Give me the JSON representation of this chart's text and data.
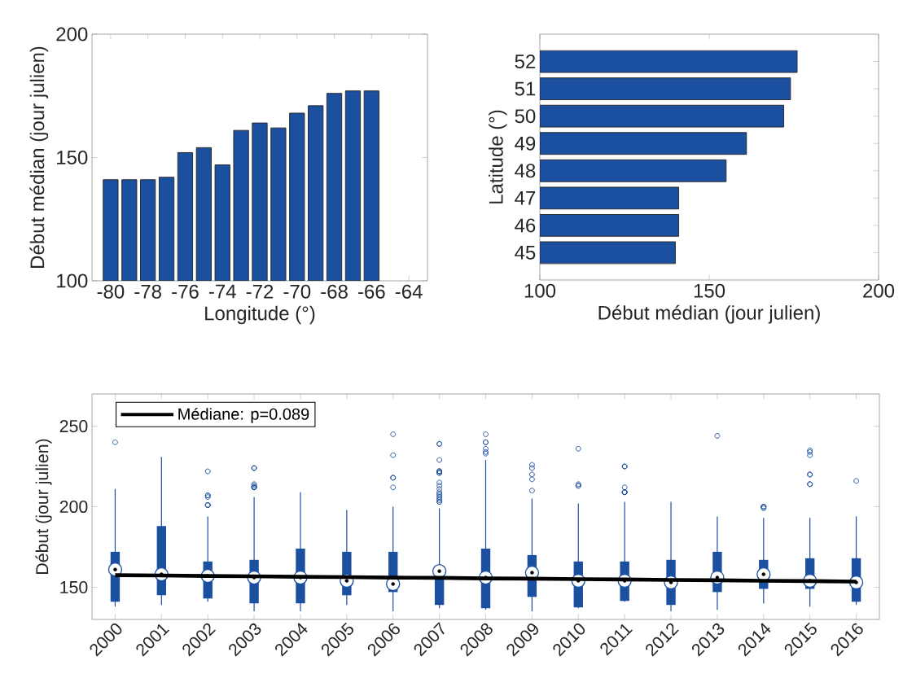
{
  "chart_data": [
    {
      "type": "bar",
      "xlabel": "Longitude (°)",
      "ylabel": "Début médian (jour julien)",
      "color": "#1b4f9f",
      "x": [
        -80,
        -79,
        -78,
        -77,
        -76,
        -75,
        -74,
        -73,
        -72,
        -71,
        -70,
        -69,
        -68,
        -67,
        -66
      ],
      "values": [
        141,
        141,
        141,
        142,
        152,
        154,
        147,
        161,
        164,
        162,
        168,
        171,
        176,
        177,
        177
      ],
      "xlim": [
        -81,
        -63
      ],
      "xticks": [
        -80,
        -78,
        -76,
        -74,
        -72,
        -70,
        -68,
        -66,
        -64
      ],
      "ylim": [
        100,
        200
      ],
      "yticks": [
        100,
        150,
        200
      ]
    },
    {
      "type": "bar",
      "orientation": "horizontal",
      "xlabel": "Début médian (jour julien)",
      "ylabel": "Latitude (°)",
      "color": "#1b4f9f",
      "categories": [
        "52",
        "51",
        "50",
        "49",
        "48",
        "47",
        "46",
        "45"
      ],
      "values": [
        176,
        174,
        172,
        161,
        155,
        141,
        141,
        140
      ],
      "xlim": [
        100,
        200
      ],
      "xticks": [
        100,
        150,
        200
      ]
    },
    {
      "type": "box",
      "ylabel": "Début (jour julien)",
      "legend": "top left",
      "categories": [
        "2000",
        "2001",
        "2002",
        "2003",
        "2004",
        "2005",
        "2006",
        "2007",
        "2008",
        "2009",
        "2010",
        "2011",
        "2012",
        "2013",
        "2014",
        "2015",
        "2016"
      ],
      "ylim": [
        130,
        270
      ],
      "yticks": [
        150,
        200,
        250
      ],
      "series": [
        {
          "type": "box",
          "color": "#1b4f9f",
          "boxes": [
            {
              "low": 138,
              "q1": 141,
              "median": 161,
              "q3": 172,
              "high": 211,
              "outliers": [
                240
              ]
            },
            {
              "low": 139,
              "q1": 145,
              "median": 158,
              "q3": 188,
              "high": 231
            },
            {
              "low": 141,
              "q1": 143,
              "median": 157,
              "q3": 166,
              "high": 194,
              "outliers": [
                222,
                207,
                207,
                206,
                201,
                201,
                201
              ]
            },
            {
              "low": 135,
              "q1": 140,
              "median": 156,
              "q3": 167,
              "high": 206,
              "outliers": [
                224,
                224,
                214,
                213,
                212,
                212,
                212
              ]
            },
            {
              "low": 135,
              "q1": 140,
              "median": 156,
              "q3": 174,
              "high": 209
            },
            {
              "low": 139,
              "q1": 145,
              "median": 154,
              "q3": 172,
              "high": 198
            },
            {
              "low": 135,
              "q1": 147,
              "median": 152,
              "q3": 172,
              "high": 200,
              "outliers": [
                245,
                232,
                218,
                218,
                212
              ]
            },
            {
              "low": 137,
              "q1": 139,
              "median": 160,
              "q3": 163,
              "high": 199,
              "outliers": [
                239,
                239,
                229,
                222,
                222,
                222,
                221,
                221,
                215,
                213,
                211,
                209,
                208,
                207,
                206,
                205,
                204,
                203,
                203
              ]
            },
            {
              "low": 136,
              "q1": 137,
              "median": 156,
              "q3": 174,
              "high": 229,
              "outliers": [
                245,
                240,
                240,
                236,
                234,
                233
              ]
            },
            {
              "low": 135,
              "q1": 144,
              "median": 159,
              "q3": 170,
              "high": 205,
              "outliers": [
                226,
                224,
                220,
                217,
                210
              ]
            },
            {
              "low": 137,
              "q1": 137.5,
              "median": 154,
              "q3": 166,
              "high": 202,
              "outliers": [
                236,
                214,
                213,
                213
              ]
            },
            {
              "low": 141,
              "q1": 141.5,
              "median": 154,
              "q3": 166,
              "high": 203,
              "outliers": [
                225,
                225,
                212,
                209,
                209,
                209,
                209
              ]
            },
            {
              "low": 135,
              "q1": 139,
              "median": 153,
              "q3": 167,
              "high": 203
            },
            {
              "low": 136,
              "q1": 147,
              "median": 156,
              "q3": 172,
              "high": 194,
              "outliers": [
                244
              ]
            },
            {
              "low": 140,
              "q1": 149,
              "median": 158,
              "q3": 167,
              "high": 193,
              "outliers": [
                199,
                200,
                200,
                200
              ]
            },
            {
              "low": 138,
              "q1": 149,
              "median": 154,
              "q3": 168,
              "high": 193,
              "outliers": [
                235,
                234,
                232,
                220,
                220,
                214,
                214
              ]
            },
            {
              "low": 139,
              "q1": 141,
              "median": 153,
              "q3": 168,
              "high": 194,
              "outliers": [
                216
              ]
            }
          ]
        },
        {
          "type": "line",
          "name": "Médiane: p=0.089",
          "color": "#000000",
          "values": [
            157.5,
            157.3,
            157,
            156.8,
            156.5,
            156.3,
            156,
            155.8,
            155.5,
            155.3,
            155,
            154.8,
            154.5,
            154.3,
            154,
            153.8,
            153.5
          ]
        }
      ]
    }
  ]
}
